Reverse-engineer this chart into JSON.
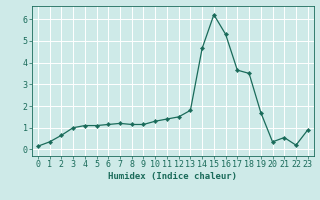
{
  "x": [
    0,
    1,
    2,
    3,
    4,
    5,
    6,
    7,
    8,
    9,
    10,
    11,
    12,
    13,
    14,
    15,
    16,
    17,
    18,
    19,
    20,
    21,
    22,
    23
  ],
  "y": [
    0.15,
    0.35,
    0.65,
    1.0,
    1.1,
    1.1,
    1.15,
    1.2,
    1.15,
    1.15,
    1.3,
    1.4,
    1.5,
    1.8,
    4.65,
    6.2,
    5.3,
    3.65,
    3.5,
    1.7,
    0.35,
    0.55,
    0.2,
    0.9
  ],
  "line_color": "#1a6b5a",
  "marker": "D",
  "marker_size": 2.2,
  "bg_color": "#ceeae8",
  "grid_color": "#ffffff",
  "tick_color": "#1a6b5a",
  "xlabel": "Humidex (Indice chaleur)",
  "xlim": [
    -0.5,
    23.5
  ],
  "ylim": [
    -0.3,
    6.6
  ],
  "yticks": [
    0,
    1,
    2,
    3,
    4,
    5,
    6
  ],
  "xticks": [
    0,
    1,
    2,
    3,
    4,
    5,
    6,
    7,
    8,
    9,
    10,
    11,
    12,
    13,
    14,
    15,
    16,
    17,
    18,
    19,
    20,
    21,
    22,
    23
  ],
  "label_fontsize": 6.5,
  "tick_fontsize": 6.0
}
